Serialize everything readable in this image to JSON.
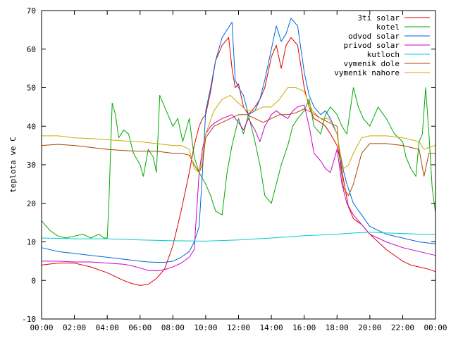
{
  "chart_data": {
    "type": "line",
    "title": "",
    "xlabel": "",
    "ylabel": "teplota ve C",
    "xlim": [
      0,
      24
    ],
    "ylim": [
      -10,
      70
    ],
    "x_ticks": [
      "00:00",
      "02:00",
      "04:00",
      "06:00",
      "08:00",
      "10:00",
      "12:00",
      "14:00",
      "16:00",
      "18:00",
      "20:00",
      "22:00",
      "00:00"
    ],
    "y_ticks": [
      -10,
      0,
      10,
      20,
      30,
      40,
      50,
      60,
      70
    ],
    "grid": false,
    "legend_position": "top-right",
    "series": [
      {
        "name": "3ti solar",
        "color": "#dd0000",
        "x": [
          0,
          1,
          2,
          3,
          4,
          5,
          5.5,
          6,
          6.5,
          7,
          7.5,
          8,
          8.5,
          9,
          9.3,
          9.6,
          9.8,
          10,
          10.3,
          10.6,
          11,
          11.4,
          11.6,
          11.8,
          12,
          12.3,
          12.6,
          13,
          13.3,
          13.6,
          14,
          14.3,
          14.6,
          14.9,
          15.2,
          15.6,
          16,
          16.3,
          16.6,
          17,
          17.3,
          17.6,
          18,
          18.2,
          18.4,
          18.7,
          19,
          19.5,
          20,
          21,
          22,
          22.5,
          23,
          23.5,
          24
        ],
        "y": [
          4,
          4.5,
          4.5,
          3.5,
          2,
          0,
          -0.8,
          -1.3,
          -1,
          0.5,
          3,
          9,
          18,
          28,
          35,
          40,
          42,
          43,
          49,
          57,
          61,
          63,
          55,
          50,
          51,
          45,
          43,
          45,
          47,
          50,
          58,
          61,
          55,
          61,
          63,
          61,
          50,
          45,
          42,
          41,
          40,
          38,
          35,
          31,
          26,
          19,
          16,
          14.5,
          12,
          8,
          5,
          4,
          3.5,
          3,
          2.3
        ]
      },
      {
        "name": "kotel",
        "color": "#00aa00",
        "x": [
          0,
          0.5,
          1,
          1.5,
          2,
          2.5,
          3,
          3.5,
          3.8,
          4,
          4.1,
          4.3,
          4.5,
          4.7,
          5,
          5.3,
          5.6,
          6,
          6.2,
          6.5,
          6.8,
          7,
          7.2,
          7.5,
          8,
          8.3,
          8.6,
          9,
          9.3,
          9.6,
          10,
          10.3,
          10.6,
          11,
          11.3,
          11.6,
          12,
          12.3,
          12.6,
          13,
          13.3,
          13.6,
          14,
          14.3,
          14.6,
          15,
          15.3,
          15.6,
          16,
          16.3,
          16.6,
          17,
          17.3,
          17.6,
          18,
          18.3,
          18.6,
          19,
          19.3,
          19.6,
          20,
          20.5,
          21,
          21.5,
          22,
          22.2,
          22.5,
          22.8,
          23,
          23.2,
          23.4,
          23.6,
          23.8,
          24
        ],
        "y": [
          15.5,
          13,
          11.5,
          11,
          11.5,
          12,
          11,
          12,
          11,
          11,
          20,
          46,
          43,
          37,
          39,
          38,
          33,
          30,
          27,
          34,
          32,
          28,
          48,
          45,
          40,
          42,
          36,
          42,
          32,
          28,
          25,
          22,
          18,
          17,
          28,
          35,
          42,
          38,
          43,
          36,
          30,
          22,
          20,
          25,
          30,
          35,
          40,
          42,
          44,
          47,
          40,
          38,
          43,
          45,
          43,
          40,
          38,
          50,
          45,
          42,
          40,
          45,
          42,
          38,
          36,
          32,
          29,
          27,
          36,
          38,
          50,
          38,
          24,
          17.5
        ]
      },
      {
        "name": "odvod solar",
        "color": "#0066dd",
        "x": [
          0,
          1,
          2,
          3,
          4,
          5,
          6,
          6.5,
          7,
          7.5,
          8,
          8.5,
          9,
          9.3,
          9.6,
          9.8,
          10,
          10.3,
          10.6,
          11,
          11.3,
          11.6,
          11.8,
          12,
          12.3,
          12.6,
          13,
          13.3,
          13.6,
          14,
          14.3,
          14.6,
          14.9,
          15.2,
          15.6,
          16,
          16.3,
          16.6,
          17,
          17.3,
          17.6,
          18,
          18.3,
          18.6,
          19,
          19.5,
          20,
          21,
          22,
          23,
          24
        ],
        "y": [
          8.5,
          7.5,
          7,
          6.5,
          6,
          5.5,
          5,
          4.8,
          4.7,
          4.7,
          5,
          6,
          7.5,
          10,
          14,
          28,
          44,
          50,
          57,
          63,
          65,
          67,
          52,
          50,
          48,
          43,
          44,
          47,
          52,
          60,
          66,
          62,
          64,
          68,
          66,
          54,
          48,
          45,
          43,
          44,
          42,
          38,
          30,
          25,
          20,
          17,
          14,
          12,
          11,
          10,
          9.5
        ]
      },
      {
        "name": "privod solar",
        "color": "#cc00cc",
        "x": [
          0,
          1,
          2,
          3,
          4,
          5,
          5.5,
          6,
          6.5,
          7,
          7.5,
          8,
          8.5,
          9,
          9.3,
          9.6,
          9.8,
          10,
          10.3,
          10.6,
          11,
          11.3,
          11.6,
          12,
          12.3,
          12.6,
          13,
          13.3,
          13.6,
          14,
          14.3,
          14.6,
          15,
          15.3,
          15.6,
          16,
          16.3,
          16.6,
          17,
          17.3,
          17.6,
          18,
          18.3,
          18.6,
          19,
          19.5,
          20,
          21,
          22,
          23,
          24
        ],
        "y": [
          5,
          5,
          4.8,
          4.8,
          4.5,
          4.2,
          3.8,
          3.2,
          2.6,
          2.5,
          2.8,
          3.5,
          4.5,
          6,
          8,
          28,
          34,
          38,
          40,
          41,
          42,
          42.5,
          43,
          41,
          39,
          42,
          39,
          36,
          40,
          43,
          44,
          43,
          42,
          44,
          45,
          45.5,
          40,
          33,
          31,
          29,
          28,
          34,
          25,
          20,
          17,
          14.5,
          12,
          10,
          8.5,
          7.5,
          6.5
        ]
      },
      {
        "name": "kutloch",
        "color": "#00cccc",
        "x": [
          0,
          2,
          4,
          6,
          8,
          10,
          12,
          14,
          16,
          18,
          19,
          20,
          21,
          22,
          23,
          24
        ],
        "y": [
          11,
          10.8,
          10.8,
          10.5,
          10.3,
          10.2,
          10.5,
          11,
          11.6,
          12,
          12.3,
          12.5,
          12.3,
          12.2,
          12,
          12
        ]
      },
      {
        "name": "vymenik dole",
        "color": "#aa4400",
        "x": [
          0,
          1,
          2,
          3,
          4,
          5,
          6,
          7,
          8,
          8.5,
          9,
          9.3,
          9.6,
          9.8,
          10,
          10.5,
          11,
          11.5,
          12,
          12.5,
          13,
          13.5,
          14,
          14.5,
          15,
          15.5,
          16,
          16.5,
          17,
          17.5,
          18,
          18.2,
          18.4,
          18.7,
          19,
          19.5,
          20,
          21,
          22,
          22.5,
          23,
          23.3,
          23.6,
          24
        ],
        "y": [
          35,
          35.3,
          35,
          34.5,
          34,
          33.7,
          33.5,
          33.5,
          33,
          33,
          32.5,
          30,
          28,
          30,
          37,
          40,
          41,
          42,
          43,
          43,
          42,
          41,
          42,
          43,
          43,
          43.5,
          44.5,
          43.5,
          42,
          41,
          40,
          30,
          24,
          22,
          25,
          33,
          35.5,
          35.5,
          35,
          34.5,
          34,
          27,
          33,
          33
        ]
      },
      {
        "name": "vymenik nahore",
        "color": "#ccaa00",
        "x": [
          0,
          1,
          2,
          3,
          4,
          5,
          6,
          7,
          8,
          8.5,
          9,
          9.3,
          9.6,
          9.8,
          10,
          10.5,
          11,
          11.5,
          12,
          12.5,
          13,
          13.5,
          14,
          14.5,
          15,
          15.5,
          16,
          16.5,
          17,
          17.5,
          18,
          18.2,
          18.4,
          18.7,
          19,
          19.5,
          20,
          21,
          22,
          22.5,
          23,
          23.3,
          23.6,
          24
        ],
        "y": [
          37.5,
          37.5,
          37,
          36.8,
          36.5,
          36.2,
          36,
          35.5,
          35,
          35,
          34,
          29,
          28,
          32,
          38,
          44,
          47,
          48,
          46,
          44,
          44,
          45,
          45,
          47,
          50,
          50,
          49,
          44,
          42,
          42,
          38,
          33,
          29,
          30,
          33,
          37,
          37.5,
          37.5,
          37,
          36.5,
          36,
          34,
          34.5,
          35
        ]
      }
    ]
  }
}
